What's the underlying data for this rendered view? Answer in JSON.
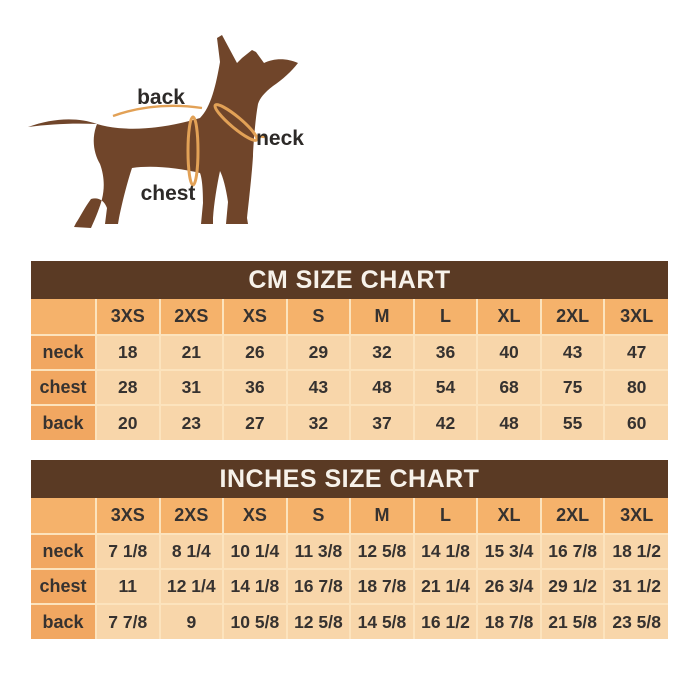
{
  "dog_diagram": {
    "back_label": "back",
    "neck_label": "neck",
    "chest_label": "chest"
  },
  "chart_data": [
    {
      "type": "table",
      "title": "CM SIZE CHART",
      "columns": [
        "3XS",
        "2XS",
        "XS",
        "S",
        "M",
        "L",
        "XL",
        "2XL",
        "3XL"
      ],
      "rows": [
        {
          "label": "neck",
          "values": [
            "18",
            "21",
            "26",
            "29",
            "32",
            "36",
            "40",
            "43",
            "47"
          ]
        },
        {
          "label": "chest",
          "values": [
            "28",
            "31",
            "36",
            "43",
            "48",
            "54",
            "68",
            "75",
            "80"
          ]
        },
        {
          "label": "back",
          "values": [
            "20",
            "23",
            "27",
            "32",
            "37",
            "42",
            "48",
            "55",
            "60"
          ]
        }
      ]
    },
    {
      "type": "table",
      "title": "INCHES SIZE CHART",
      "columns": [
        "3XS",
        "2XS",
        "XS",
        "S",
        "M",
        "L",
        "XL",
        "2XL",
        "3XL"
      ],
      "rows": [
        {
          "label": "neck",
          "values": [
            "7 1/8",
            "8 1/4",
            "10 1/4",
            "11 3/8",
            "12 5/8",
            "14 1/8",
            "15 3/4",
            "16 7/8",
            "18 1/2"
          ]
        },
        {
          "label": "chest",
          "values": [
            "11",
            "12 1/4",
            "14 1/8",
            "16 7/8",
            "18 7/8",
            "21 1/4",
            "26 3/4",
            "29 1/2",
            "31 1/2"
          ]
        },
        {
          "label": "back",
          "values": [
            "7 7/8",
            "9",
            "10 5/8",
            "12 5/8",
            "14 5/8",
            "16 1/2",
            "18 7/8",
            "21 5/8",
            "23 5/8"
          ]
        }
      ]
    }
  ],
  "colors": {
    "title_bar_bg": "#5a3a24",
    "title_text": "#f7f2ea",
    "size_header_bg": "#f5b26b",
    "row_label_bg": "#f1a761",
    "cell_bg": "#f8d6aa",
    "grid_line": "#fce3bd",
    "table_text": "#363230",
    "dog_body": "#70452a",
    "measure_line": "#e2a156",
    "diagram_text": "#2d2a28"
  }
}
